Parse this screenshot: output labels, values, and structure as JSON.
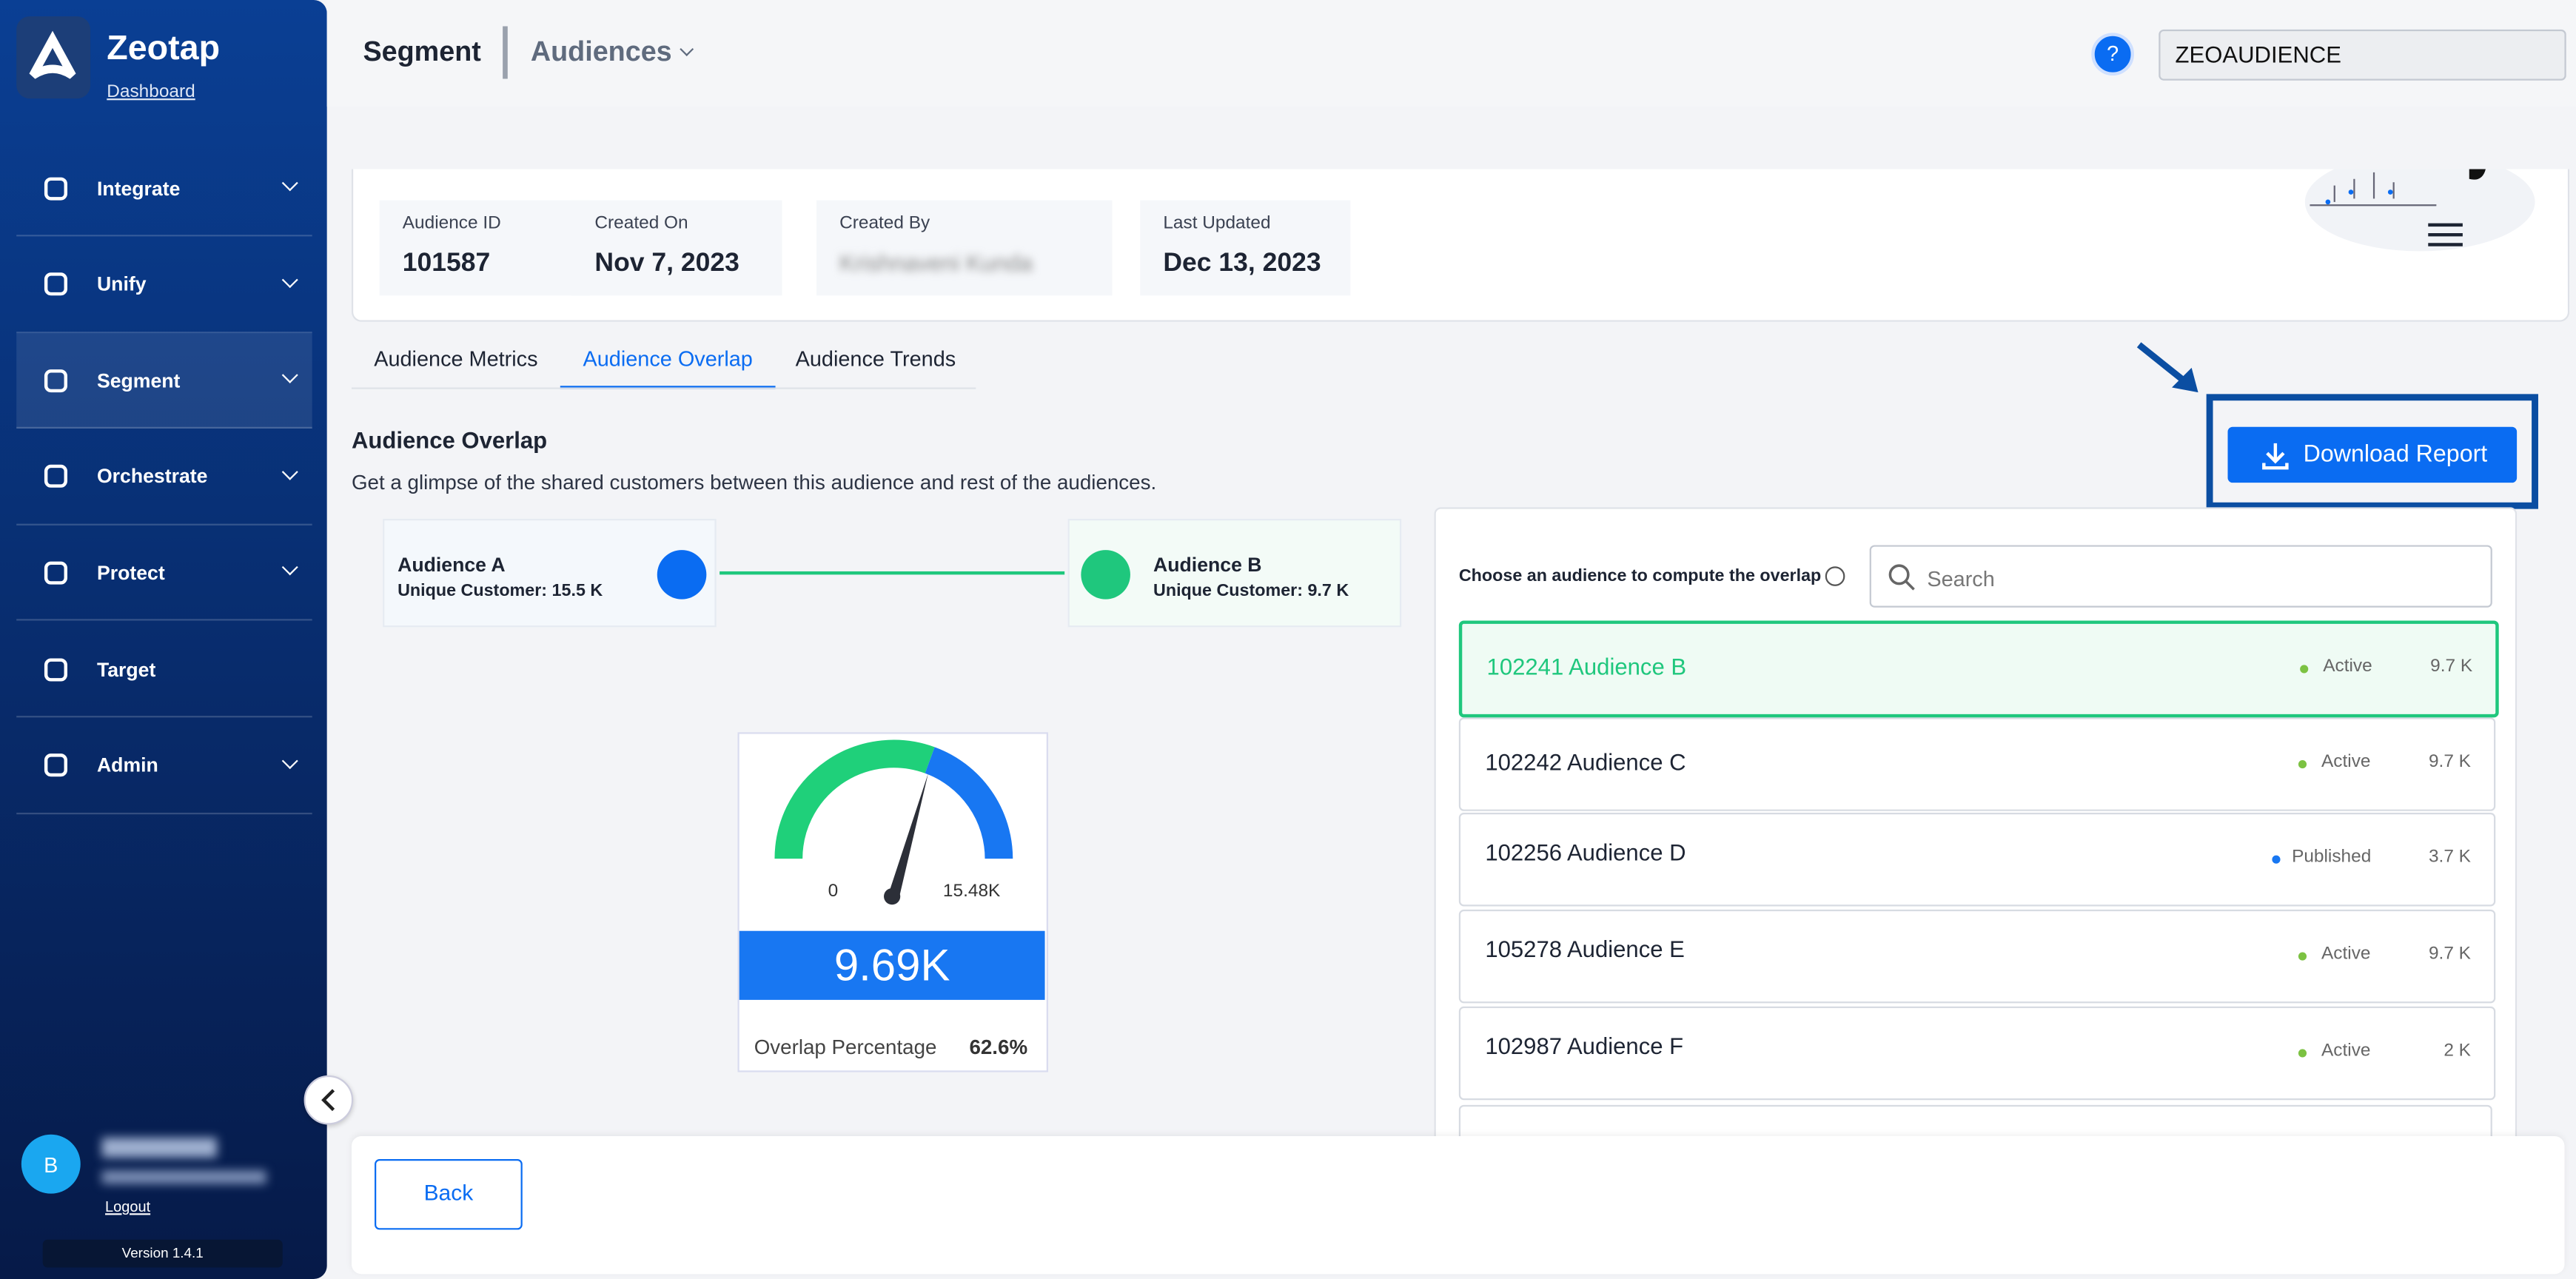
{
  "sidebar": {
    "brand": "Zeotap",
    "link": "Dashboard",
    "nav": [
      "Integrate",
      "Unify",
      "Segment",
      "Orchestrate",
      "Protect",
      "Target",
      "Admin"
    ],
    "active": 2,
    "user_initial": "B",
    "logout": "Logout",
    "version": "Version 1.4.1"
  },
  "header": {
    "section": "Segment",
    "page": "Audiences",
    "account": "ZEOAUDIENCE"
  },
  "info": [
    {
      "label": "Audience ID",
      "value": "101587"
    },
    {
      "label": "Created On",
      "value": "Nov 7, 2023"
    },
    {
      "label": "Created By",
      "value": "Krishnaveni Kunda"
    },
    {
      "label": "Last Updated",
      "value": "Dec 13, 2023"
    }
  ],
  "tabs": {
    "items": [
      "Audience Metrics",
      "Audience Overlap",
      "Audience Trends"
    ],
    "active": 1
  },
  "download": "Download Report",
  "overlap": {
    "title": "Audience Overlap",
    "description": "Get a glimpse of the shared customers between this audience and rest of the audiences.",
    "a": {
      "name": "Audience A",
      "count": "Unique Customer: 15.5 K"
    },
    "b": {
      "name": "Audience B",
      "count": "Unique Customer: 9.7 K"
    },
    "gauge": {
      "min": "0",
      "max": "15.48K",
      "value": "9.69K",
      "label": "Overlap Percentage",
      "percentage": "62.6%"
    }
  },
  "picker": {
    "label": "Choose an audience to compute the overlap",
    "search": "Search",
    "selected": 0,
    "items": [
      {
        "name": "102241 Audience B",
        "status": "Active",
        "size": "9.7 K"
      },
      {
        "name": "102242 Audience C",
        "status": "Active",
        "size": "9.7 K"
      },
      {
        "name": "102256 Audience D",
        "status": "Published",
        "size": "3.7 K"
      },
      {
        "name": "105278 Audience E",
        "status": "Active",
        "size": "9.7 K"
      },
      {
        "name": "102987 Audience F",
        "status": "Active",
        "size": "2 K"
      }
    ]
  },
  "back": "Back"
}
